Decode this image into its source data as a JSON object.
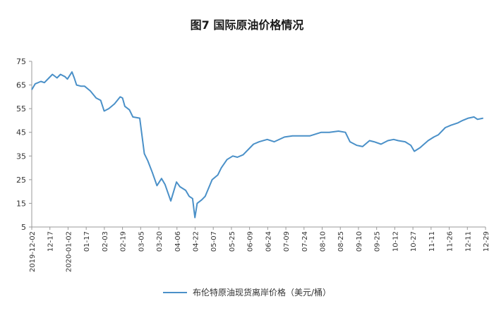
{
  "title": "图7  国际原油价格情况",
  "chart_data": {
    "type": "line",
    "title": "图7  国际原油价格情况",
    "xlabel": "",
    "ylabel": "",
    "ylim": [
      5,
      75
    ],
    "yticks": [
      5,
      15,
      25,
      35,
      45,
      55,
      65,
      75
    ],
    "xticks": [
      "2019-12-02",
      "12-17",
      "2020-01-02",
      "01-17",
      "02-03",
      "02-19",
      "03-05",
      "03-20",
      "04-06",
      "04-22",
      "05-07",
      "05-25",
      "06-09",
      "06-24",
      "07-09",
      "07-24",
      "08-10",
      "08-25",
      "09-10",
      "09-25",
      "10-12",
      "10-27",
      "11-11",
      "11-26",
      "12-11",
      "12-29"
    ],
    "grid": false,
    "legend_position": "bottom-center",
    "series": [
      {
        "name": "布伦特原油现货离岸价格（美元/桶）",
        "color": "#4a90c8",
        "x": [
          "2019-12-02",
          "2019-12-05",
          "2019-12-10",
          "2019-12-13",
          "2019-12-17",
          "2019-12-20",
          "2019-12-24",
          "2019-12-27",
          "2019-12-31",
          "2020-01-02",
          "2020-01-06",
          "2020-01-08",
          "2020-01-10",
          "2020-01-14",
          "2020-01-17",
          "2020-01-22",
          "2020-01-27",
          "2020-01-31",
          "2020-02-03",
          "2020-02-07",
          "2020-02-12",
          "2020-02-17",
          "2020-02-19",
          "2020-02-21",
          "2020-02-25",
          "2020-02-28",
          "2020-03-05",
          "2020-03-09",
          "2020-03-12",
          "2020-03-16",
          "2020-03-20",
          "2020-03-24",
          "2020-03-27",
          "2020-04-01",
          "2020-04-06",
          "2020-04-09",
          "2020-04-14",
          "2020-04-17",
          "2020-04-20",
          "2020-04-22",
          "2020-04-24",
          "2020-04-28",
          "2020-05-01",
          "2020-05-07",
          "2020-05-12",
          "2020-05-15",
          "2020-05-20",
          "2020-05-25",
          "2020-05-29",
          "2020-06-03",
          "2020-06-09",
          "2020-06-12",
          "2020-06-17",
          "2020-06-24",
          "2020-06-30",
          "2020-07-09",
          "2020-07-16",
          "2020-07-24",
          "2020-07-31",
          "2020-08-10",
          "2020-08-17",
          "2020-08-25",
          "2020-08-31",
          "2020-09-04",
          "2020-09-10",
          "2020-09-15",
          "2020-09-21",
          "2020-09-25",
          "2020-10-01",
          "2020-10-07",
          "2020-10-12",
          "2020-10-16",
          "2020-10-22",
          "2020-10-27",
          "2020-10-30",
          "2020-11-04",
          "2020-11-11",
          "2020-11-16",
          "2020-11-20",
          "2020-11-26",
          "2020-12-01",
          "2020-12-07",
          "2020-12-11",
          "2020-12-16",
          "2020-12-21",
          "2020-12-24",
          "2020-12-29"
        ],
        "values": [
          63.0,
          65.5,
          66.5,
          66.0,
          68.0,
          69.5,
          68.0,
          69.5,
          68.5,
          67.5,
          70.5,
          68.0,
          65.0,
          64.5,
          64.5,
          62.5,
          59.5,
          58.5,
          54.0,
          55.0,
          57.0,
          60.0,
          59.5,
          56.0,
          54.5,
          51.5,
          51.0,
          36.0,
          33.0,
          28.0,
          22.5,
          25.5,
          23.0,
          16.0,
          24.0,
          22.0,
          20.5,
          18.0,
          17.0,
          9.0,
          15.0,
          16.5,
          18.0,
          25.0,
          27.0,
          30.0,
          33.5,
          35.0,
          34.5,
          35.5,
          38.5,
          40.0,
          41.0,
          42.0,
          41.0,
          43.0,
          43.5,
          43.5,
          43.5,
          45.0,
          45.0,
          45.5,
          45.0,
          41.0,
          39.5,
          39.0,
          41.5,
          41.0,
          40.0,
          41.5,
          42.0,
          41.5,
          41.0,
          39.5,
          37.0,
          38.5,
          41.5,
          43.0,
          44.0,
          47.0,
          48.0,
          49.0,
          50.0,
          51.0,
          51.5,
          50.5,
          51.0
        ]
      }
    ]
  }
}
